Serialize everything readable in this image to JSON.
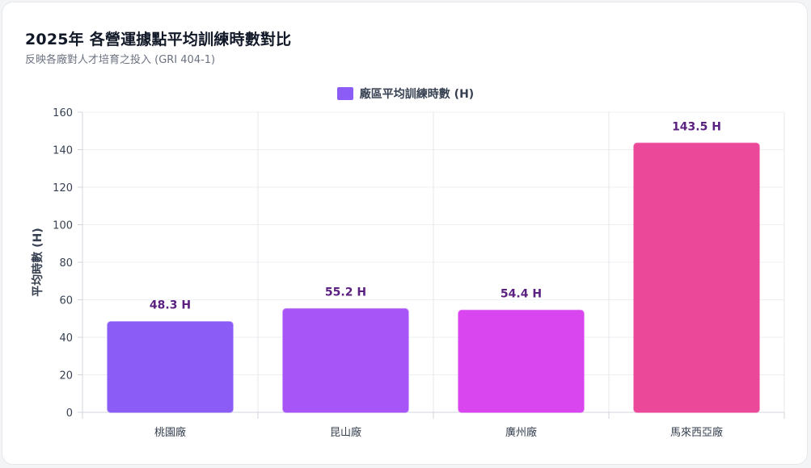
{
  "title": "2025年 各營運據點平均訓練時數對比",
  "subtitle": "反映各廠對人才培育之投入 (GRI 404-1)",
  "chart_data": {
    "type": "bar",
    "categories": [
      "桃園廠",
      "昆山廠",
      "廣州廠",
      "馬來西亞廠"
    ],
    "series": [
      {
        "name": "廠區平均訓練時數 (H)",
        "values": [
          48.3,
          55.2,
          54.4,
          143.5
        ],
        "data_labels": [
          "48.3 H",
          "55.2 H",
          "54.4 H",
          "143.5 H"
        ]
      }
    ],
    "bar_colors": [
      "#8b5cf6",
      "#a855f7",
      "#d946ef",
      "#ec4899"
    ],
    "legend_color": "#8b5cf6",
    "xlabel": "",
    "ylabel": "平均時數 (H)",
    "ylim": [
      0,
      160
    ],
    "yticks": [
      0,
      20,
      40,
      60,
      80,
      100,
      120,
      140,
      160
    ],
    "grid": true,
    "legend_position": "top-center"
  }
}
